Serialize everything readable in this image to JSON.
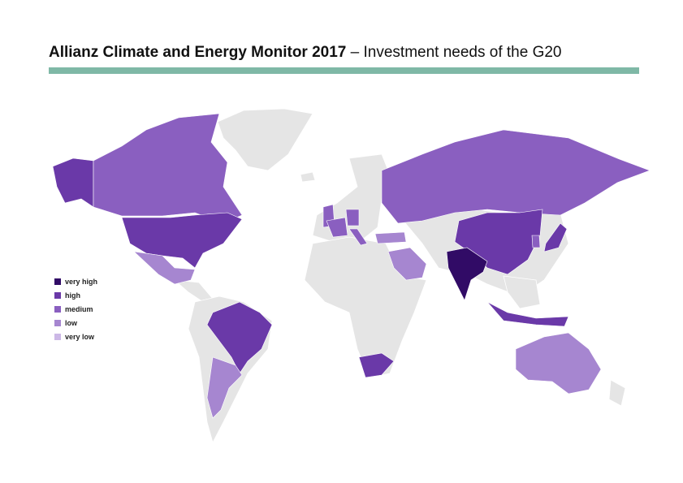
{
  "title": {
    "bold": "Allianz Climate and Energy Monitor 2017",
    "rest": "– Investment needs of the G20"
  },
  "legend": {
    "items": [
      {
        "label": "very high",
        "color": "#310b66"
      },
      {
        "label": "high",
        "color": "#6a39a8"
      },
      {
        "label": "medium",
        "color": "#8a5fc0"
      },
      {
        "label": "low",
        "color": "#a686d0"
      },
      {
        "label": "very low",
        "color": "#ccb8e6"
      }
    ]
  }
}
